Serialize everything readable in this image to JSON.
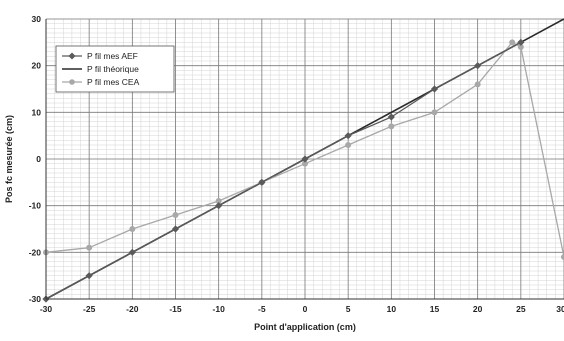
{
  "chart_data": {
    "type": "line",
    "title": "",
    "xlabel": "Point d'application (cm)",
    "ylabel": "Pos fc mesurée (cm)",
    "xlim": [
      -30,
      30
    ],
    "ylim": [
      -30,
      30
    ],
    "x_major_ticks": [
      -30,
      -25,
      -20,
      -15,
      -10,
      -5,
      0,
      5,
      10,
      15,
      20,
      25,
      30
    ],
    "y_major_ticks": [
      -30,
      -20,
      -10,
      0,
      10,
      20,
      30
    ],
    "grid": true,
    "legend_position": "top-left",
    "series": [
      {
        "name": "P fil mes AEF",
        "color": "#5a5a5a",
        "marker": "diamond",
        "points": [
          [
            -30,
            -30
          ],
          [
            -25,
            -25
          ],
          [
            -20,
            -20
          ],
          [
            -15,
            -15
          ],
          [
            -10,
            -10
          ],
          [
            -5,
            -5
          ],
          [
            0,
            0
          ],
          [
            5,
            5
          ],
          [
            10,
            9
          ],
          [
            15,
            15
          ],
          [
            20,
            20
          ],
          [
            25,
            25
          ]
        ]
      },
      {
        "name": "P fil théorique",
        "color": "#2a2a2a",
        "marker": "none",
        "points": [
          [
            -30,
            -30
          ],
          [
            30,
            30
          ]
        ]
      },
      {
        "name": "P fil mes CEA",
        "color": "#a8a8a8",
        "marker": "circle",
        "points": [
          [
            -30,
            -20
          ],
          [
            -25,
            -19
          ],
          [
            -20,
            -15
          ],
          [
            -15,
            -12
          ],
          [
            -10,
            -9
          ],
          [
            -5,
            -5
          ],
          [
            0,
            -1
          ],
          [
            5,
            3
          ],
          [
            10,
            7
          ],
          [
            15,
            10
          ],
          [
            20,
            16
          ],
          [
            24,
            25
          ],
          [
            25,
            24
          ],
          [
            30,
            -21
          ]
        ]
      }
    ]
  }
}
